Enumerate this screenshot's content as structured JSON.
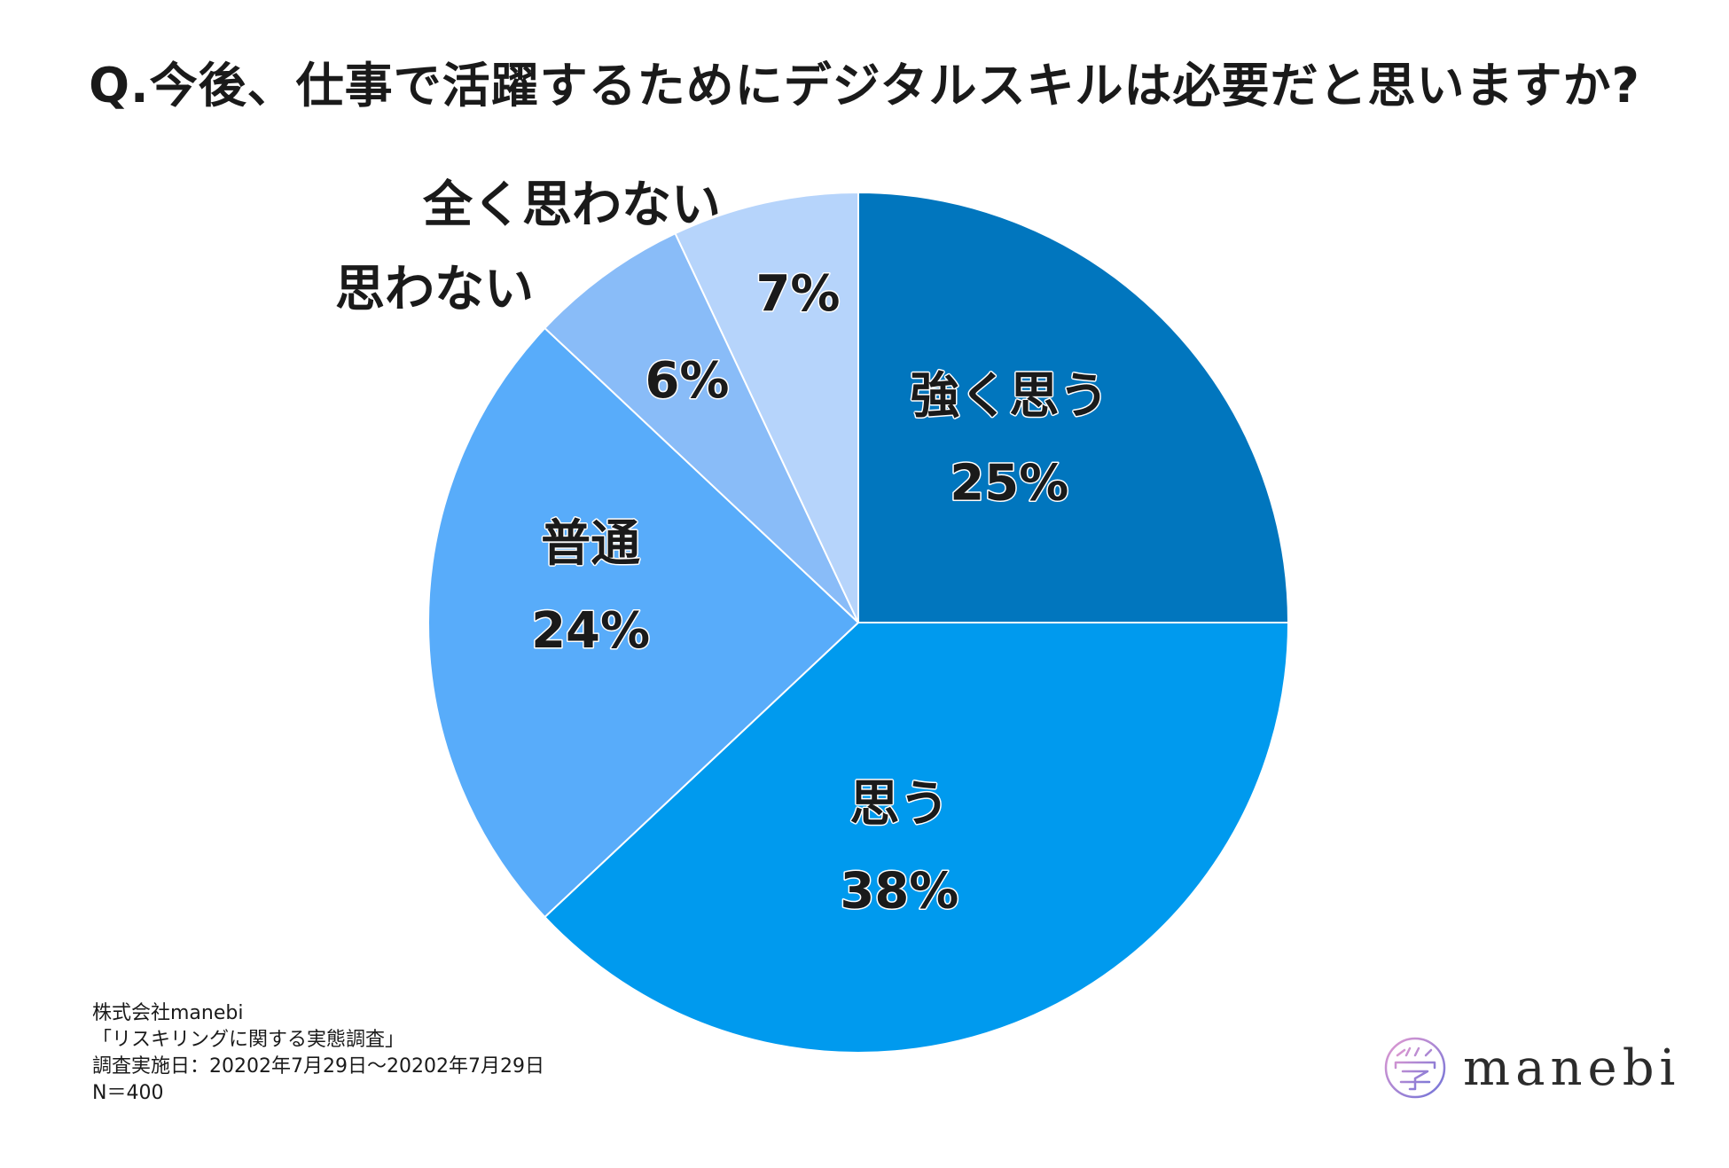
{
  "chart_data": {
    "type": "pie",
    "title": "Q.今後、仕事で活躍するためにデジタルスキルは必要だと思いますか?",
    "slices": [
      {
        "label": "強く思う",
        "value": 25,
        "display": "25%",
        "color": "#0176be"
      },
      {
        "label": "思う",
        "value": 38,
        "display": "38%",
        "color": "#009aee"
      },
      {
        "label": "普通",
        "value": 24,
        "display": "24%",
        "color": "#58acfa"
      },
      {
        "label": "思わない",
        "value": 6,
        "display": "6%",
        "color": "#89bcf8"
      },
      {
        "label": "全く思わない",
        "value": 7,
        "display": "7%",
        "color": "#b6d4fb"
      }
    ],
    "start": "12 o'clock",
    "direction": "clockwise"
  },
  "footer": {
    "company": "株式会社manebi",
    "survey": "「リスキリングに関する実態調査」",
    "date": "調査実施日：20202年7月29日〜20202年7月29日",
    "n": "N＝400"
  },
  "logo": {
    "text": "manebi"
  }
}
